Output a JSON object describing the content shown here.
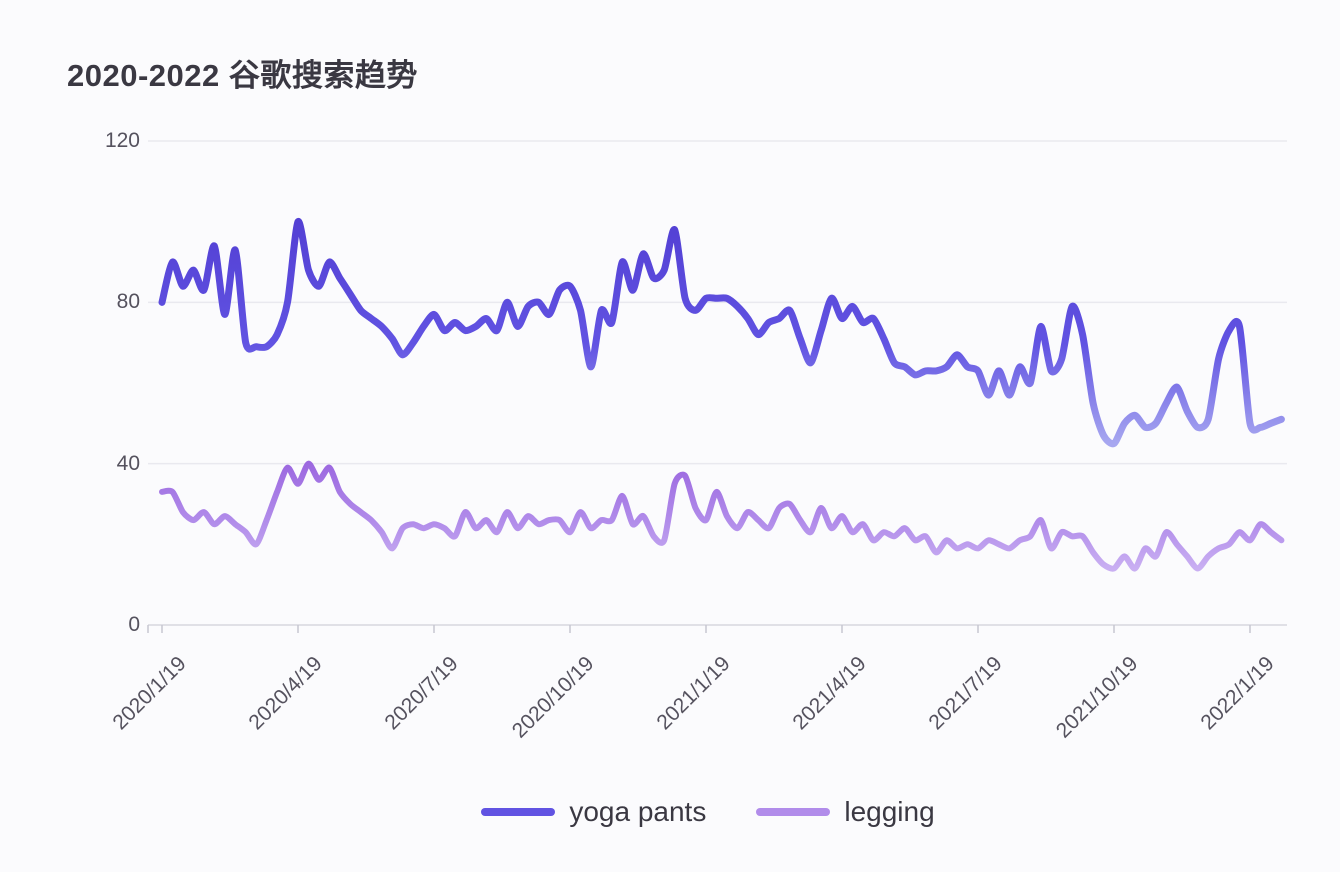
{
  "page": {
    "background": "#fbfbfd"
  },
  "chart_data": {
    "type": "line",
    "title": "2020-2022 谷歌搜索趋势",
    "xlabel": "",
    "ylabel": "",
    "x_interval": "weekly",
    "weeks_per_tick": 13,
    "x_tick_labels": [
      "2020/1/19",
      "2020/4/19",
      "2020/7/19",
      "2020/10/19",
      "2021/1/19",
      "2021/4/19",
      "2021/7/19",
      "2021/10/19",
      "2022/1/19"
    ],
    "y_ticks": [
      "0",
      "40",
      "80",
      "120"
    ],
    "ylim": [
      0,
      120
    ],
    "grid": "horizontal",
    "legend_position": "bottom",
    "colors": {
      "background": "#fbfbfd",
      "grid": "#e9e9ef",
      "axis": "#d7d7df",
      "tick": "#c6c6d0",
      "title": "#3a3842",
      "axis_label": "#55525e",
      "legend_text": "#3a3842"
    },
    "series": [
      {
        "name": "yoga pants",
        "color": "#6153e2",
        "color_top": "#5340d4",
        "color_bottom": "#a7a7f0",
        "line_width": 7,
        "values": [
          80,
          90,
          84,
          88,
          83,
          94,
          77,
          93,
          70,
          69,
          69,
          72,
          80,
          100,
          88,
          84,
          90,
          86,
          82,
          78,
          76,
          74,
          71,
          67,
          70,
          74,
          77,
          73,
          75,
          73,
          74,
          76,
          73,
          80,
          74,
          79,
          80,
          77,
          83,
          84,
          78,
          64,
          78,
          75,
          90,
          83,
          92,
          86,
          88,
          98,
          81,
          78,
          81,
          81,
          81,
          79,
          76,
          72,
          75,
          76,
          78,
          71,
          65,
          73,
          81,
          76,
          79,
          75,
          76,
          71,
          65,
          64,
          62,
          63,
          63,
          64,
          67,
          64,
          63,
          57,
          63,
          57,
          64,
          60,
          74,
          63,
          66,
          79,
          72,
          55,
          47,
          45,
          50,
          52,
          49,
          50,
          55,
          59,
          53,
          49,
          51,
          66,
          73,
          74,
          50,
          49,
          50,
          51
        ]
      },
      {
        "name": "legging",
        "color": "#b18cea",
        "color_top": "#9c68e0",
        "color_bottom": "#c9aff2",
        "line_width": 6,
        "values": [
          33,
          33,
          28,
          26,
          28,
          25,
          27,
          25,
          23,
          20,
          26,
          33,
          39,
          35,
          40,
          36,
          39,
          33,
          30,
          28,
          26,
          23,
          19,
          24,
          25,
          24,
          25,
          24,
          22,
          28,
          24,
          26,
          23,
          28,
          24,
          27,
          25,
          26,
          26,
          23,
          28,
          24,
          26,
          26,
          32,
          25,
          27,
          22,
          21,
          35,
          37,
          29,
          26,
          33,
          27,
          24,
          28,
          26,
          24,
          29,
          30,
          26,
          23,
          29,
          24,
          27,
          23,
          25,
          21,
          23,
          22,
          24,
          21,
          22,
          18,
          21,
          19,
          20,
          19,
          21,
          20,
          19,
          21,
          22,
          26,
          19,
          23,
          22,
          22,
          18,
          15,
          14,
          17,
          14,
          19,
          17,
          23,
          20,
          17,
          14,
          17,
          19,
          20,
          23,
          21,
          25,
          23,
          21
        ]
      }
    ]
  }
}
